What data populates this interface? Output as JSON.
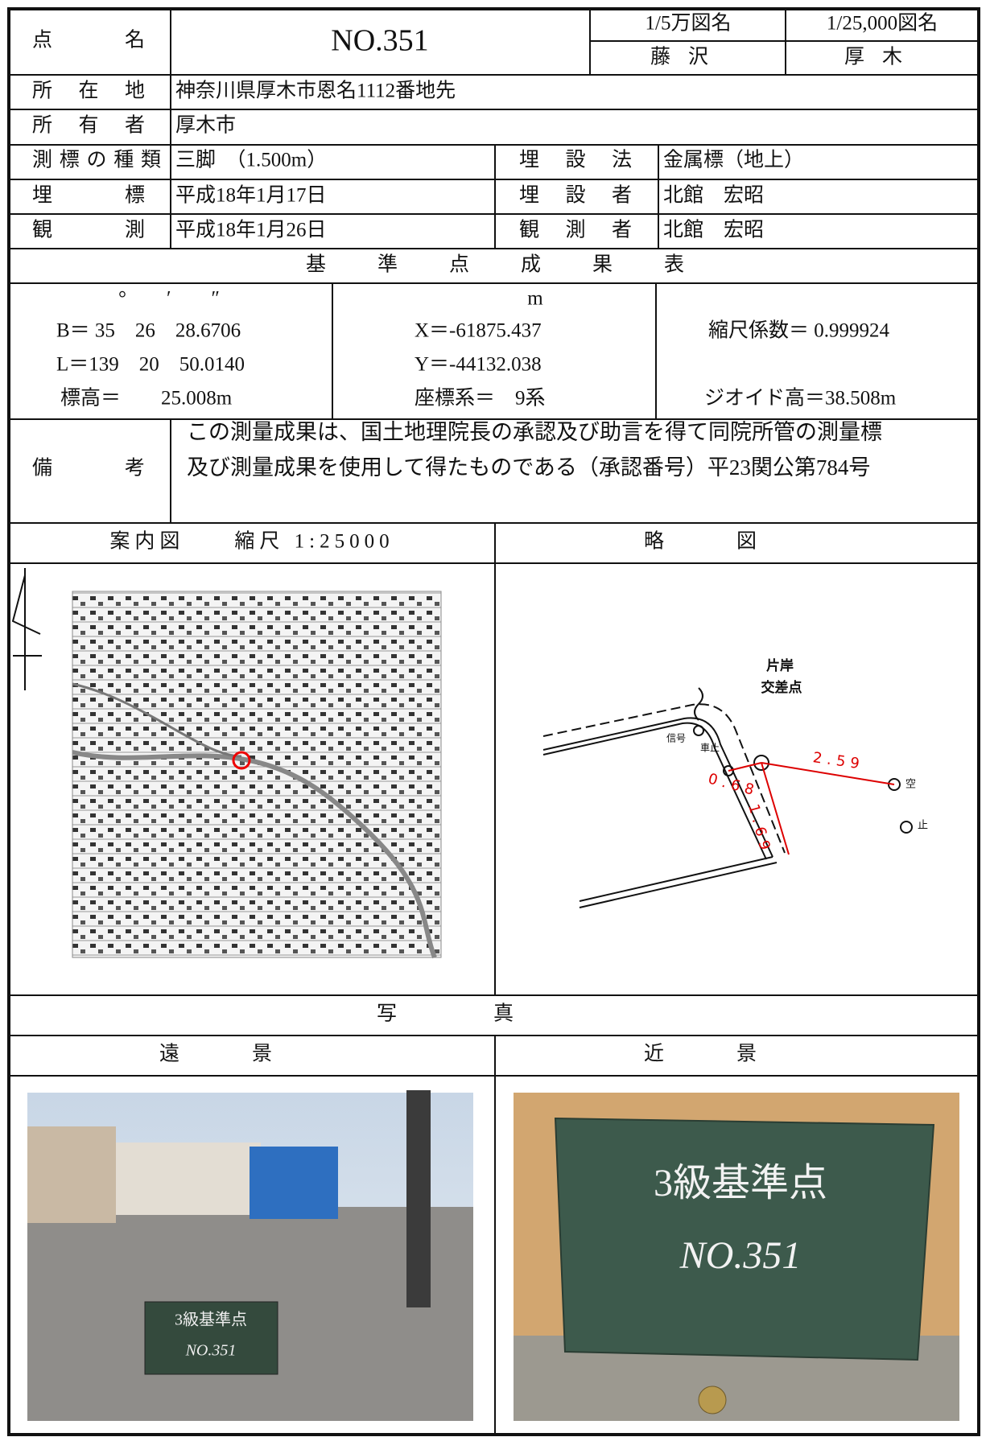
{
  "header": {
    "point_label": "点名",
    "point_name": "NO.351",
    "map50k_label": "1/5万図名",
    "map50k": "藤沢",
    "map25k_label": "1/25,000図名",
    "map25k": "厚木"
  },
  "info": {
    "location_label": "所在地",
    "location": "神奈川県厚木市恩名1112番地先",
    "owner_label": "所有者",
    "owner": "厚木市",
    "marker_type_label": "測標の種類",
    "marker_type": "三脚　（1.500m）",
    "burial_method_label": "埋設法",
    "burial_method": "金属標（地上）",
    "burial_label": "埋標",
    "burial_date": "平成18年1月17日",
    "burier_label": "埋設者",
    "burier": "北館　宏昭",
    "observation_label": "観測",
    "observation_date": "平成18年1月26日",
    "observer_label": "観測者",
    "observer": "北館　宏昭"
  },
  "results": {
    "title": "基準点成果表",
    "angle_units": "°　　′　　″",
    "B": "B＝ 35　26　28.6706",
    "L": "L＝139　20　50.0140",
    "height": "標高＝　　25.008m",
    "meter_unit": "m",
    "X": "X＝-61875.437",
    "Y": "Y＝-44132.038",
    "coord_system": "座標系＝　9系",
    "scale_factor": "縮尺係数＝ 0.999924",
    "geoid": "ジオイド高＝38.508m"
  },
  "remarks": {
    "label": "備考",
    "lines": [
      "この測量成果は、国土地理院長の承認及び助言を得て同院所管の測量標",
      "及び測量成果を使用して得たものである（承認番号）平23関公第784号"
    ]
  },
  "maps": {
    "guide_title": "案内図　　縮尺 1:25000",
    "sketch_title": "略図",
    "sketch_labels": {
      "intersection": [
        "片岸",
        "交差点"
      ],
      "signal": "信号",
      "bollard": "車止",
      "empty": "空",
      "stop": "止",
      "d1": "0.68",
      "d2": "1.69",
      "d3": "2.59"
    }
  },
  "photos": {
    "title": "写真",
    "far": "遠景",
    "near": "近景",
    "board": [
      "3級基準点",
      "NO.351"
    ]
  }
}
